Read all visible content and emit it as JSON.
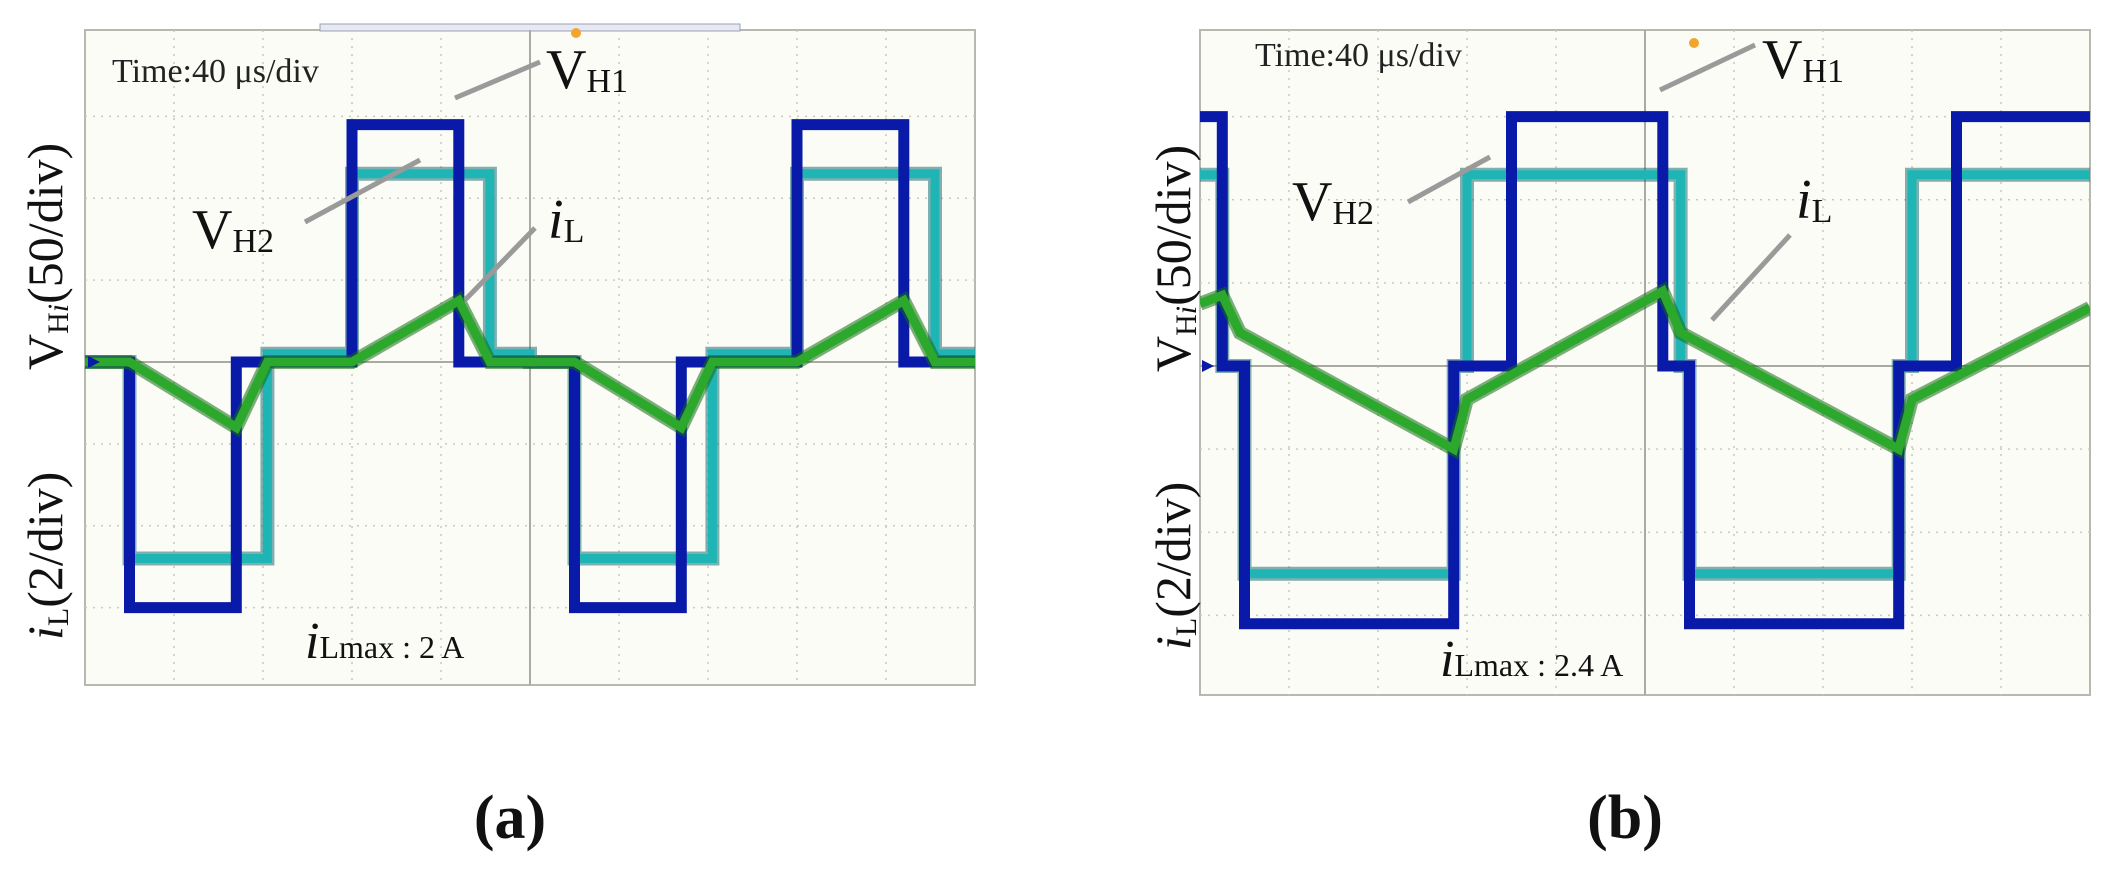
{
  "chart_data": [
    {
      "type": "line",
      "panel_label": "(a)",
      "time_label": "Time:40 μs/div",
      "ylabel_top": {
        "main": "V",
        "sub": "H",
        "sub_italic": "i",
        "rest": "(50/div)"
      },
      "ylabel_bottom": {
        "main": "i",
        "sub": "L",
        "rest": "(2/div)"
      },
      "annotations": {
        "vh1": {
          "main": "V",
          "sub": "H1"
        },
        "vh2": {
          "main": "V",
          "sub": "H2"
        },
        "il": {
          "main": "i",
          "sub": "L"
        },
        "ilmax": {
          "main": "i",
          "sub": "Lmax",
          "rest": " : 2 A"
        }
      },
      "xlim": [
        0,
        10
      ],
      "ylim": [
        -4,
        4
      ],
      "period_div": 5.0,
      "series": [
        {
          "name": "V_H1",
          "color": "#0a1aa8",
          "x": [
            0,
            0.5,
            0.5,
            1.7,
            1.7,
            3.0,
            3.0,
            4.2,
            4.2,
            5.0,
            5.0,
            5.5,
            5.5,
            6.7,
            6.7,
            8.0,
            8.0,
            9.2,
            9.2,
            10.0
          ],
          "y": [
            0,
            0,
            -3.0,
            -3.0,
            0,
            0,
            2.9,
            2.9,
            0,
            0,
            0,
            0,
            -3.0,
            -3.0,
            0,
            0,
            2.9,
            2.9,
            0,
            0
          ]
        },
        {
          "name": "V_H2",
          "color": "#1fb5b5",
          "x": [
            0,
            0.5,
            0.5,
            2.05,
            2.05,
            3.0,
            3.0,
            4.55,
            4.55,
            5.0,
            5.0,
            5.5,
            5.5,
            7.05,
            7.05,
            8.0,
            8.0,
            9.55,
            9.55,
            10.0
          ],
          "y": [
            0,
            0,
            -2.4,
            -2.4,
            0.1,
            0.1,
            2.3,
            2.3,
            0.1,
            0.1,
            0,
            0,
            -2.4,
            -2.4,
            0.1,
            0.1,
            2.3,
            2.3,
            0.1,
            0.1
          ]
        },
        {
          "name": "i_L",
          "color": "#2ca82c",
          "x": [
            0,
            0.5,
            1.7,
            2.05,
            3.0,
            4.2,
            4.55,
            5.0,
            5.5,
            6.7,
            7.05,
            8.0,
            9.2,
            9.55,
            10.0
          ],
          "y": [
            0,
            0,
            -0.8,
            0,
            0,
            0.75,
            0,
            0,
            0,
            -0.8,
            0,
            0,
            0.75,
            0,
            0
          ]
        }
      ]
    },
    {
      "type": "line",
      "panel_label": "(b)",
      "time_label": "Time:40 μs/div",
      "ylabel_top": {
        "main": "V",
        "sub": "H",
        "sub_italic": "i",
        "rest": "(50/div)"
      },
      "ylabel_bottom": {
        "main": "i",
        "sub": "L",
        "rest": "(2/div)"
      },
      "annotations": {
        "vh1": {
          "main": "V",
          "sub": "H1"
        },
        "vh2": {
          "main": "V",
          "sub": "H2"
        },
        "il": {
          "main": "i",
          "sub": "L"
        },
        "ilmax": {
          "main": "i",
          "sub": "Lmax",
          "rest": " : 2.4 A"
        }
      },
      "xlim": [
        0,
        10
      ],
      "ylim": [
        -4,
        4
      ],
      "period_div": 5.0,
      "series": [
        {
          "name": "V_H1",
          "color": "#0a1aa8",
          "x": [
            0,
            0.25,
            0.25,
            0.5,
            0.5,
            2.85,
            2.85,
            3.5,
            3.5,
            5.2,
            5.2,
            5.5,
            5.5,
            7.85,
            7.85,
            8.5,
            8.5,
            10.0
          ],
          "y": [
            3.0,
            3.0,
            0,
            0,
            -3.1,
            -3.1,
            0,
            0,
            3.0,
            3.0,
            0,
            0,
            -3.1,
            -3.1,
            0,
            0,
            3.0,
            3.0
          ]
        },
        {
          "name": "V_H2",
          "color": "#1fb5b5",
          "x": [
            0,
            0.25,
            0.25,
            0.5,
            0.5,
            2.85,
            2.85,
            3.0,
            3.0,
            5.4,
            5.4,
            5.5,
            5.5,
            7.85,
            7.85,
            8.0,
            8.0,
            10.0
          ],
          "y": [
            2.3,
            2.3,
            0,
            0,
            -2.5,
            -2.5,
            0,
            0,
            2.3,
            2.3,
            0,
            0,
            -2.5,
            -2.5,
            0,
            0,
            2.3,
            2.3
          ]
        },
        {
          "name": "i_L",
          "color": "#2ca82c",
          "x": [
            0,
            0.25,
            0.45,
            2.85,
            3.0,
            5.2,
            5.4,
            7.85,
            8.0,
            10.0
          ],
          "y": [
            0.75,
            0.85,
            0.4,
            -1.0,
            -0.4,
            0.9,
            0.4,
            -1.0,
            -0.4,
            0.7
          ]
        }
      ]
    }
  ]
}
